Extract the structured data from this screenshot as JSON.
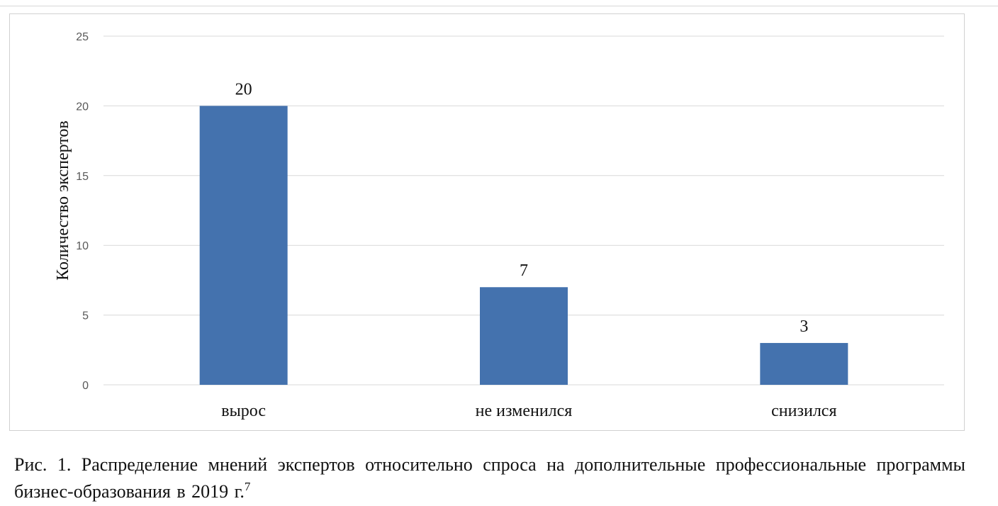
{
  "chart_data": {
    "type": "bar",
    "categories": [
      "вырос",
      "не изменился",
      "снизился"
    ],
    "values": [
      20,
      7,
      3
    ],
    "data_labels": [
      "20",
      "7",
      "3"
    ],
    "ylabel": "Количество экспертов",
    "xlabel": "",
    "ylim": [
      0,
      25
    ],
    "yticks": [
      "0",
      "5",
      "10",
      "15",
      "20",
      "25"
    ],
    "grid": true,
    "legend": "none",
    "colors": {
      "bar": "#4472AE",
      "grid": "#D9D9D9",
      "tick_text": "#595959",
      "label_text": "#111111"
    }
  },
  "caption": {
    "text": "Рис. 1. Распределение мнений экспертов относительно спроса на дополнительные профессиональные программы бизнес-образования в 2019 г.",
    "footnote": "7"
  }
}
